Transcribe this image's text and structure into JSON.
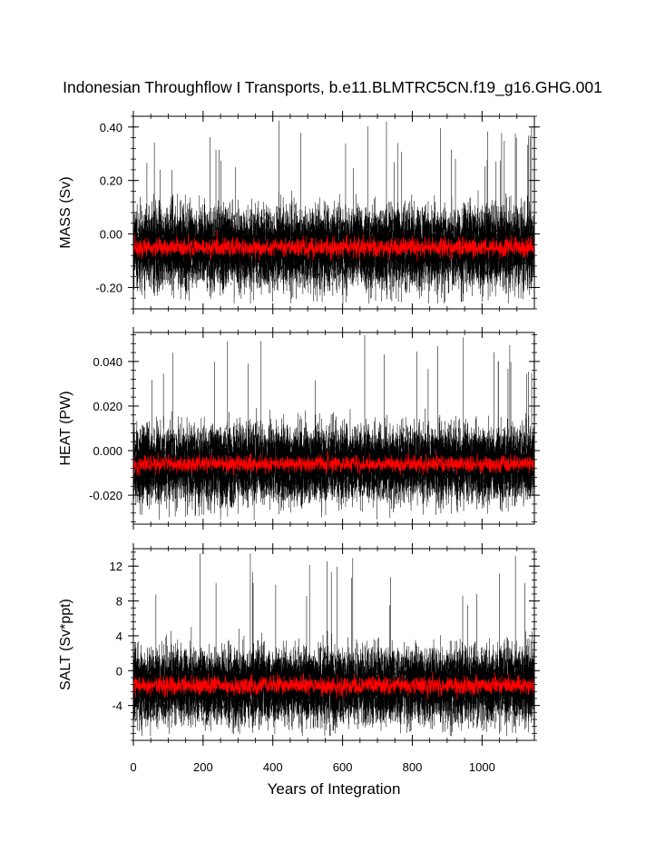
{
  "chart_data": {
    "type": "line",
    "title": "Indonesian Throughflow I Transports, b.e11.BLMTRC5CN.f19_g16.GHG.001",
    "xlabel": "Years of Integration",
    "xlim": [
      0,
      1150
    ],
    "x_ticks": [
      "0",
      "200",
      "400",
      "600",
      "800",
      "1000"
    ],
    "x_tick_values": [
      0,
      200,
      400,
      600,
      800,
      1000
    ],
    "n_years": 1150,
    "colors": {
      "monthly": "#000000",
      "annual": "#ff0000"
    },
    "panels": [
      {
        "ylabel": "MASS (Sv)",
        "ylim": [
          -0.28,
          0.44
        ],
        "y_ticks": [
          "0.40",
          "0.20",
          "0.00",
          "-0.20"
        ],
        "y_tick_values": [
          0.4,
          0.2,
          0.0,
          -0.2
        ],
        "series": [
          {
            "kind": "monthly",
            "mean": -0.05,
            "envelope_min": -0.26,
            "envelope_max": 0.43,
            "typical_range": [
              -0.2,
              0.15
            ]
          },
          {
            "kind": "annual",
            "mean": -0.05,
            "envelope_min": -0.11,
            "envelope_max": 0.06
          }
        ]
      },
      {
        "ylabel": "HEAT (PW)",
        "ylim": [
          -0.033,
          0.053
        ],
        "y_ticks": [
          "0.040",
          "0.020",
          "0.000",
          "-0.020"
        ],
        "y_tick_values": [
          0.04,
          0.02,
          0.0,
          -0.02
        ],
        "series": [
          {
            "kind": "monthly",
            "mean": -0.006,
            "envelope_min": -0.031,
            "envelope_max": 0.052,
            "typical_range": [
              -0.024,
              0.015
            ]
          },
          {
            "kind": "annual",
            "mean": -0.006,
            "envelope_min": -0.013,
            "envelope_max": 0.005
          }
        ]
      },
      {
        "ylabel": "SALT (Sv*ppt)",
        "ylim": [
          -8,
          14
        ],
        "y_ticks": [
          "12",
          "8",
          "4",
          "0",
          "-4"
        ],
        "y_tick_values": [
          12,
          8,
          4,
          0,
          -4
        ],
        "series": [
          {
            "kind": "monthly",
            "mean": -1.7,
            "envelope_min": -7.5,
            "envelope_max": 13.5,
            "typical_range": [
              -6,
              4
            ]
          },
          {
            "kind": "annual",
            "mean": -1.7,
            "envelope_min": -3.8,
            "envelope_max": 1.5
          }
        ]
      }
    ]
  }
}
